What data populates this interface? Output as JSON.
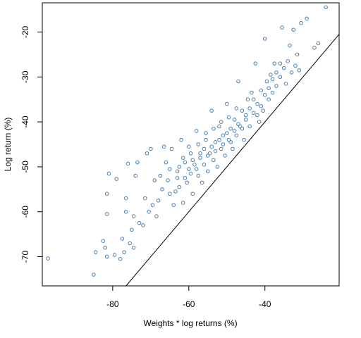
{
  "chart_data": {
    "type": "scatter",
    "title": "",
    "xlabel": "Weights * log returns (%)",
    "ylabel": "Log return (%)",
    "xlim": [
      -98.5,
      -20.5
    ],
    "ylim": [
      -76.5,
      -13.5
    ],
    "x_ticks": [
      -80,
      -60,
      -40
    ],
    "y_ticks": [
      -70,
      -60,
      -50,
      -40,
      -30,
      -20
    ],
    "x_tick_labels": [
      "-80",
      "-60",
      "-40"
    ],
    "y_tick_labels": [
      "-70",
      "-60",
      "-50",
      "-40",
      "-30",
      "-20"
    ],
    "reference_line": {
      "description": "y = x",
      "slope": 1,
      "intercept": 0
    },
    "marker": "open-circle",
    "grid": false,
    "legend": "none",
    "point_color": "#4a7fb0",
    "line_color": "#000000",
    "points": [
      {
        "x": -97,
        "y": -70.4
      },
      {
        "x": -85,
        "y": -74
      },
      {
        "x": -84.5,
        "y": -69
      },
      {
        "x": -82.5,
        "y": -66.5
      },
      {
        "x": -82,
        "y": -68
      },
      {
        "x": -81.5,
        "y": -70
      },
      {
        "x": -81,
        "y": -51.5
      },
      {
        "x": -81.5,
        "y": -56
      },
      {
        "x": -81.5,
        "y": -60.5
      },
      {
        "x": -79,
        "y": -52.7
      },
      {
        "x": -79.5,
        "y": -69.6
      },
      {
        "x": -78,
        "y": -70.5
      },
      {
        "x": -77.5,
        "y": -66
      },
      {
        "x": -77,
        "y": -69
      },
      {
        "x": -76.5,
        "y": -57
      },
      {
        "x": -76.5,
        "y": -60
      },
      {
        "x": -76,
        "y": -49.3
      },
      {
        "x": -75.5,
        "y": -67
      },
      {
        "x": -75,
        "y": -64
      },
      {
        "x": -74.5,
        "y": -68
      },
      {
        "x": -74.5,
        "y": -61
      },
      {
        "x": -74,
        "y": -52
      },
      {
        "x": -73.5,
        "y": -49
      },
      {
        "x": -73,
        "y": -62.5
      },
      {
        "x": -72,
        "y": -63
      },
      {
        "x": -71.5,
        "y": -57
      },
      {
        "x": -71,
        "y": -47
      },
      {
        "x": -70.5,
        "y": -60
      },
      {
        "x": -70,
        "y": -46
      },
      {
        "x": -69.5,
        "y": -58.5
      },
      {
        "x": -69,
        "y": -53
      },
      {
        "x": -68.5,
        "y": -61
      },
      {
        "x": -68,
        "y": -57.5
      },
      {
        "x": -67,
        "y": -55
      },
      {
        "x": -66.5,
        "y": -45.5
      },
      {
        "x": -66,
        "y": -49
      },
      {
        "x": -65,
        "y": -56
      },
      {
        "x": -64.5,
        "y": -46
      },
      {
        "x": -64,
        "y": -58.5
      },
      {
        "x": -63,
        "y": -51
      },
      {
        "x": -62.5,
        "y": -54.5
      },
      {
        "x": -62,
        "y": -44
      },
      {
        "x": -61.5,
        "y": -58
      },
      {
        "x": -61,
        "y": -49
      },
      {
        "x": -60.5,
        "y": -53.5
      },
      {
        "x": -60,
        "y": -45.5
      },
      {
        "x": -59.5,
        "y": -51.5
      },
      {
        "x": -59,
        "y": -56
      },
      {
        "x": -58.5,
        "y": -49.5
      },
      {
        "x": -58,
        "y": -42
      },
      {
        "x": -57.5,
        "y": -52
      },
      {
        "x": -57,
        "y": -47
      },
      {
        "x": -56.5,
        "y": -53.5
      },
      {
        "x": -56,
        "y": -49.5
      },
      {
        "x": -55.5,
        "y": -44
      },
      {
        "x": -55,
        "y": -51
      },
      {
        "x": -54.5,
        "y": -47
      },
      {
        "x": -54,
        "y": -37.5
      },
      {
        "x": -53.5,
        "y": -48.5
      },
      {
        "x": -53,
        "y": -44.5
      },
      {
        "x": -52.5,
        "y": -50
      },
      {
        "x": -52,
        "y": -41
      },
      {
        "x": -51.5,
        "y": -46
      },
      {
        "x": -51,
        "y": -43
      },
      {
        "x": -50.5,
        "y": -47.5
      },
      {
        "x": -50,
        "y": -36
      },
      {
        "x": -49.5,
        "y": -44
      },
      {
        "x": -49,
        "y": -41.5
      },
      {
        "x": -48.5,
        "y": -46
      },
      {
        "x": -48,
        "y": -39.5
      },
      {
        "x": -47.5,
        "y": -43
      },
      {
        "x": -47,
        "y": -31
      },
      {
        "x": -46.5,
        "y": -41
      },
      {
        "x": -46,
        "y": -37.5
      },
      {
        "x": -45.5,
        "y": -44
      },
      {
        "x": -45,
        "y": -39.5
      },
      {
        "x": -44.5,
        "y": -35
      },
      {
        "x": -44,
        "y": -41
      },
      {
        "x": -43.5,
        "y": -33.5
      },
      {
        "x": -43,
        "y": -38
      },
      {
        "x": -42.5,
        "y": -27
      },
      {
        "x": -42,
        "y": -36
      },
      {
        "x": -41.5,
        "y": -40
      },
      {
        "x": -41,
        "y": -33
      },
      {
        "x": -40.5,
        "y": -37.5
      },
      {
        "x": -40,
        "y": -21.5
      },
      {
        "x": -39.5,
        "y": -31
      },
      {
        "x": -39,
        "y": -35
      },
      {
        "x": -38.5,
        "y": -29.5
      },
      {
        "x": -38,
        "y": -33.5
      },
      {
        "x": -37.5,
        "y": -27
      },
      {
        "x": -37,
        "y": -32
      },
      {
        "x": -36,
        "y": -30
      },
      {
        "x": -35.5,
        "y": -19
      },
      {
        "x": -35,
        "y": -28
      },
      {
        "x": -34.5,
        "y": -31.5
      },
      {
        "x": -34,
        "y": -26.5
      },
      {
        "x": -33.5,
        "y": -23
      },
      {
        "x": -33,
        "y": -29
      },
      {
        "x": -32.5,
        "y": -19.5
      },
      {
        "x": -32,
        "y": -27.5
      },
      {
        "x": -31.5,
        "y": -25
      },
      {
        "x": -31,
        "y": -28.5
      },
      {
        "x": -30.5,
        "y": -18
      },
      {
        "x": -29,
        "y": -17
      },
      {
        "x": -27,
        "y": -23.5
      },
      {
        "x": -26,
        "y": -22.5
      },
      {
        "x": -24,
        "y": -14.5
      },
      {
        "x": -67.5,
        "y": -52
      },
      {
        "x": -65.5,
        "y": -53
      },
      {
        "x": -63.5,
        "y": -55.5
      },
      {
        "x": -62.5,
        "y": -50
      },
      {
        "x": -61,
        "y": -52.5
      },
      {
        "x": -60,
        "y": -50.5
      },
      {
        "x": -59,
        "y": -48.5
      },
      {
        "x": -58,
        "y": -50.5
      },
      {
        "x": -57,
        "y": -48
      },
      {
        "x": -56,
        "y": -46
      },
      {
        "x": -55,
        "y": -47.5
      },
      {
        "x": -54,
        "y": -45.5
      },
      {
        "x": -53,
        "y": -46.5
      },
      {
        "x": -52,
        "y": -44
      },
      {
        "x": -51,
        "y": -45
      },
      {
        "x": -50,
        "y": -42.5
      },
      {
        "x": -49,
        "y": -44.5
      },
      {
        "x": -48,
        "y": -42
      },
      {
        "x": -47,
        "y": -40.5
      },
      {
        "x": -46,
        "y": -41.5
      },
      {
        "x": -45,
        "y": -38.5
      },
      {
        "x": -44,
        "y": -37
      },
      {
        "x": -43,
        "y": -35
      },
      {
        "x": -42,
        "y": -38.5
      },
      {
        "x": -41,
        "y": -36.5
      },
      {
        "x": -40,
        "y": -34
      },
      {
        "x": -39,
        "y": -32.5
      },
      {
        "x": -38,
        "y": -30.5
      },
      {
        "x": -37,
        "y": -29
      },
      {
        "x": -36,
        "y": -27
      },
      {
        "x": -65,
        "y": -50.5
      },
      {
        "x": -63,
        "y": -52.5
      },
      {
        "x": -61.5,
        "y": -48
      },
      {
        "x": -59.5,
        "y": -47
      },
      {
        "x": -57.5,
        "y": -45
      },
      {
        "x": -55.5,
        "y": -42.5
      },
      {
        "x": -53.5,
        "y": -41.5
      },
      {
        "x": -51.5,
        "y": -40
      },
      {
        "x": -49.5,
        "y": -39
      },
      {
        "x": -47.5,
        "y": -37
      }
    ]
  }
}
